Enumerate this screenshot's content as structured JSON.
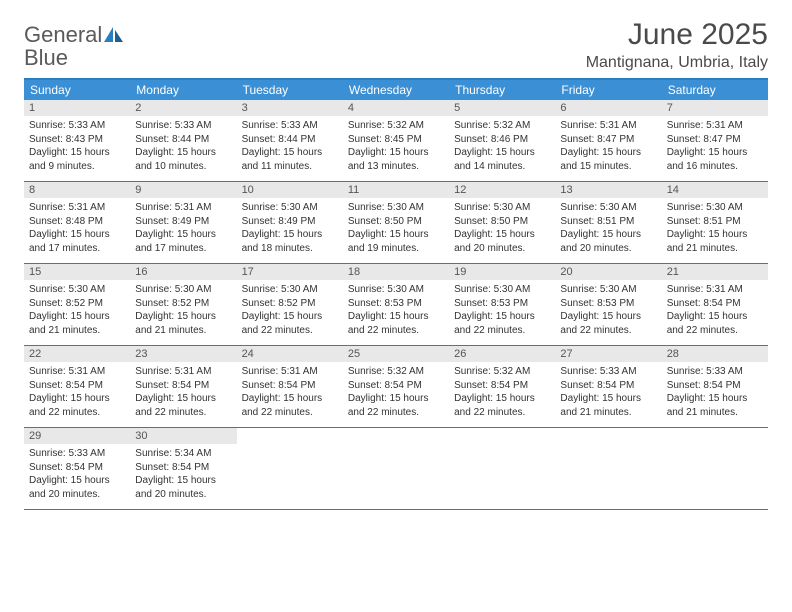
{
  "brand": {
    "part1": "General",
    "part2": "Blue"
  },
  "title": "June 2025",
  "subtitle": "Mantignana, Umbria, Italy",
  "colors": {
    "header_bg": "#3b8fd4",
    "header_border": "#2a7fbf",
    "daynum_bg": "#e8e8e8",
    "text": "#333333"
  },
  "dayheads": [
    "Sunday",
    "Monday",
    "Tuesday",
    "Wednesday",
    "Thursday",
    "Friday",
    "Saturday"
  ],
  "weeks": [
    [
      {
        "n": "1",
        "sr": "Sunrise: 5:33 AM",
        "ss": "Sunset: 8:43 PM",
        "d1": "Daylight: 15 hours",
        "d2": "and 9 minutes."
      },
      {
        "n": "2",
        "sr": "Sunrise: 5:33 AM",
        "ss": "Sunset: 8:44 PM",
        "d1": "Daylight: 15 hours",
        "d2": "and 10 minutes."
      },
      {
        "n": "3",
        "sr": "Sunrise: 5:33 AM",
        "ss": "Sunset: 8:44 PM",
        "d1": "Daylight: 15 hours",
        "d2": "and 11 minutes."
      },
      {
        "n": "4",
        "sr": "Sunrise: 5:32 AM",
        "ss": "Sunset: 8:45 PM",
        "d1": "Daylight: 15 hours",
        "d2": "and 13 minutes."
      },
      {
        "n": "5",
        "sr": "Sunrise: 5:32 AM",
        "ss": "Sunset: 8:46 PM",
        "d1": "Daylight: 15 hours",
        "d2": "and 14 minutes."
      },
      {
        "n": "6",
        "sr": "Sunrise: 5:31 AM",
        "ss": "Sunset: 8:47 PM",
        "d1": "Daylight: 15 hours",
        "d2": "and 15 minutes."
      },
      {
        "n": "7",
        "sr": "Sunrise: 5:31 AM",
        "ss": "Sunset: 8:47 PM",
        "d1": "Daylight: 15 hours",
        "d2": "and 16 minutes."
      }
    ],
    [
      {
        "n": "8",
        "sr": "Sunrise: 5:31 AM",
        "ss": "Sunset: 8:48 PM",
        "d1": "Daylight: 15 hours",
        "d2": "and 17 minutes."
      },
      {
        "n": "9",
        "sr": "Sunrise: 5:31 AM",
        "ss": "Sunset: 8:49 PM",
        "d1": "Daylight: 15 hours",
        "d2": "and 17 minutes."
      },
      {
        "n": "10",
        "sr": "Sunrise: 5:30 AM",
        "ss": "Sunset: 8:49 PM",
        "d1": "Daylight: 15 hours",
        "d2": "and 18 minutes."
      },
      {
        "n": "11",
        "sr": "Sunrise: 5:30 AM",
        "ss": "Sunset: 8:50 PM",
        "d1": "Daylight: 15 hours",
        "d2": "and 19 minutes."
      },
      {
        "n": "12",
        "sr": "Sunrise: 5:30 AM",
        "ss": "Sunset: 8:50 PM",
        "d1": "Daylight: 15 hours",
        "d2": "and 20 minutes."
      },
      {
        "n": "13",
        "sr": "Sunrise: 5:30 AM",
        "ss": "Sunset: 8:51 PM",
        "d1": "Daylight: 15 hours",
        "d2": "and 20 minutes."
      },
      {
        "n": "14",
        "sr": "Sunrise: 5:30 AM",
        "ss": "Sunset: 8:51 PM",
        "d1": "Daylight: 15 hours",
        "d2": "and 21 minutes."
      }
    ],
    [
      {
        "n": "15",
        "sr": "Sunrise: 5:30 AM",
        "ss": "Sunset: 8:52 PM",
        "d1": "Daylight: 15 hours",
        "d2": "and 21 minutes."
      },
      {
        "n": "16",
        "sr": "Sunrise: 5:30 AM",
        "ss": "Sunset: 8:52 PM",
        "d1": "Daylight: 15 hours",
        "d2": "and 21 minutes."
      },
      {
        "n": "17",
        "sr": "Sunrise: 5:30 AM",
        "ss": "Sunset: 8:52 PM",
        "d1": "Daylight: 15 hours",
        "d2": "and 22 minutes."
      },
      {
        "n": "18",
        "sr": "Sunrise: 5:30 AM",
        "ss": "Sunset: 8:53 PM",
        "d1": "Daylight: 15 hours",
        "d2": "and 22 minutes."
      },
      {
        "n": "19",
        "sr": "Sunrise: 5:30 AM",
        "ss": "Sunset: 8:53 PM",
        "d1": "Daylight: 15 hours",
        "d2": "and 22 minutes."
      },
      {
        "n": "20",
        "sr": "Sunrise: 5:30 AM",
        "ss": "Sunset: 8:53 PM",
        "d1": "Daylight: 15 hours",
        "d2": "and 22 minutes."
      },
      {
        "n": "21",
        "sr": "Sunrise: 5:31 AM",
        "ss": "Sunset: 8:54 PM",
        "d1": "Daylight: 15 hours",
        "d2": "and 22 minutes."
      }
    ],
    [
      {
        "n": "22",
        "sr": "Sunrise: 5:31 AM",
        "ss": "Sunset: 8:54 PM",
        "d1": "Daylight: 15 hours",
        "d2": "and 22 minutes."
      },
      {
        "n": "23",
        "sr": "Sunrise: 5:31 AM",
        "ss": "Sunset: 8:54 PM",
        "d1": "Daylight: 15 hours",
        "d2": "and 22 minutes."
      },
      {
        "n": "24",
        "sr": "Sunrise: 5:31 AM",
        "ss": "Sunset: 8:54 PM",
        "d1": "Daylight: 15 hours",
        "d2": "and 22 minutes."
      },
      {
        "n": "25",
        "sr": "Sunrise: 5:32 AM",
        "ss": "Sunset: 8:54 PM",
        "d1": "Daylight: 15 hours",
        "d2": "and 22 minutes."
      },
      {
        "n": "26",
        "sr": "Sunrise: 5:32 AM",
        "ss": "Sunset: 8:54 PM",
        "d1": "Daylight: 15 hours",
        "d2": "and 22 minutes."
      },
      {
        "n": "27",
        "sr": "Sunrise: 5:33 AM",
        "ss": "Sunset: 8:54 PM",
        "d1": "Daylight: 15 hours",
        "d2": "and 21 minutes."
      },
      {
        "n": "28",
        "sr": "Sunrise: 5:33 AM",
        "ss": "Sunset: 8:54 PM",
        "d1": "Daylight: 15 hours",
        "d2": "and 21 minutes."
      }
    ],
    [
      {
        "n": "29",
        "sr": "Sunrise: 5:33 AM",
        "ss": "Sunset: 8:54 PM",
        "d1": "Daylight: 15 hours",
        "d2": "and 20 minutes."
      },
      {
        "n": "30",
        "sr": "Sunrise: 5:34 AM",
        "ss": "Sunset: 8:54 PM",
        "d1": "Daylight: 15 hours",
        "d2": "and 20 minutes."
      },
      null,
      null,
      null,
      null,
      null
    ]
  ]
}
